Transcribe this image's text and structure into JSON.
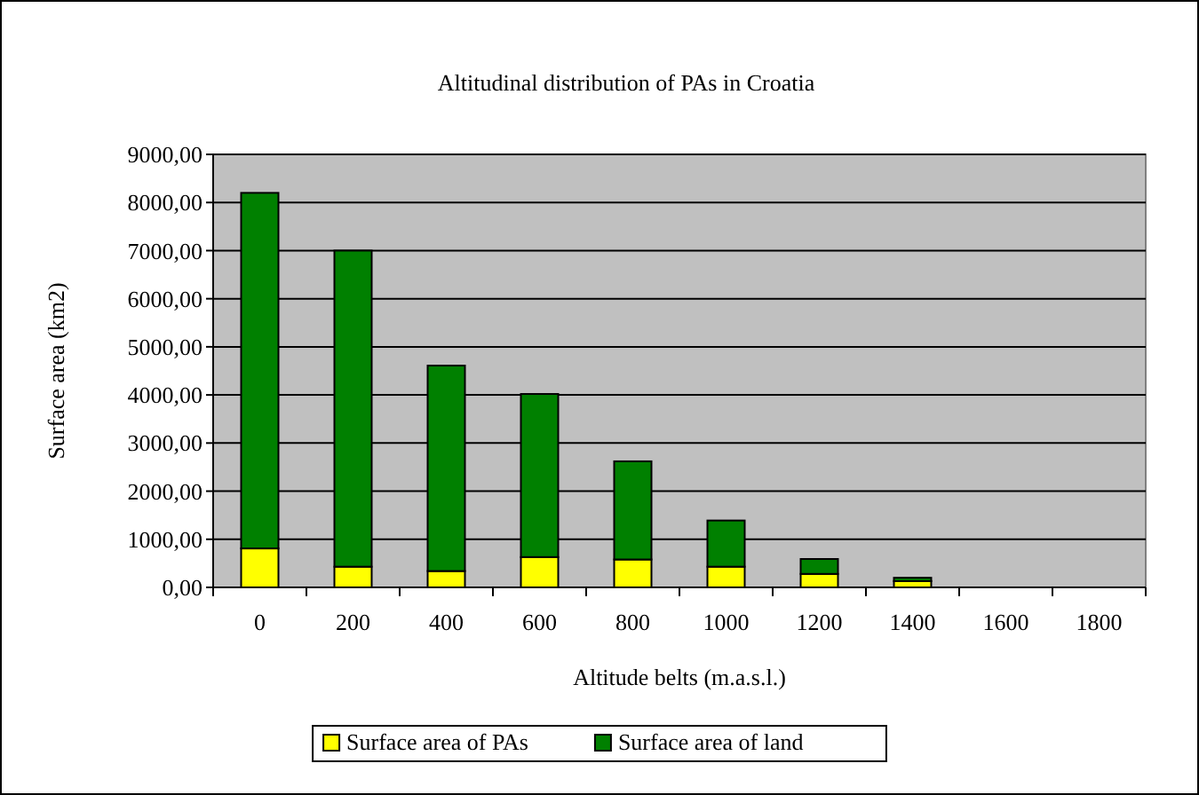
{
  "chart_data": {
    "type": "bar",
    "title": "Altitudinal distribution of PAs in Croatia",
    "xlabel": "Altitude belts (m.a.s.l.)",
    "ylabel": "Surface area (km2)",
    "categories": [
      "0",
      "200",
      "400",
      "600",
      "800",
      "1000",
      "1200",
      "1400",
      "1600",
      "1800"
    ],
    "stacked": true,
    "series": [
      {
        "name": "Surface area of PAs",
        "color": "#ffff00",
        "values": [
          810,
          430,
          340,
          630,
          580,
          430,
          280,
          130,
          0,
          0
        ]
      },
      {
        "name": "Surface area of land",
        "color": "#008000",
        "values": [
          7390,
          6570,
          4270,
          3390,
          2040,
          960,
          310,
          70,
          0,
          0
        ]
      }
    ],
    "ylim": [
      0,
      9000
    ],
    "yticks": [
      {
        "value": 0,
        "label": "0,00"
      },
      {
        "value": 1000,
        "label": "1000,00"
      },
      {
        "value": 2000,
        "label": "2000,00"
      },
      {
        "value": 3000,
        "label": "3000,00"
      },
      {
        "value": 4000,
        "label": "4000,00"
      },
      {
        "value": 5000,
        "label": "5000,00"
      },
      {
        "value": 6000,
        "label": "6000,00"
      },
      {
        "value": 7000,
        "label": "7000,00"
      },
      {
        "value": 8000,
        "label": "8000,00"
      },
      {
        "value": 9000,
        "label": "9000,00"
      }
    ],
    "grid": "y",
    "legend": "bottom"
  }
}
